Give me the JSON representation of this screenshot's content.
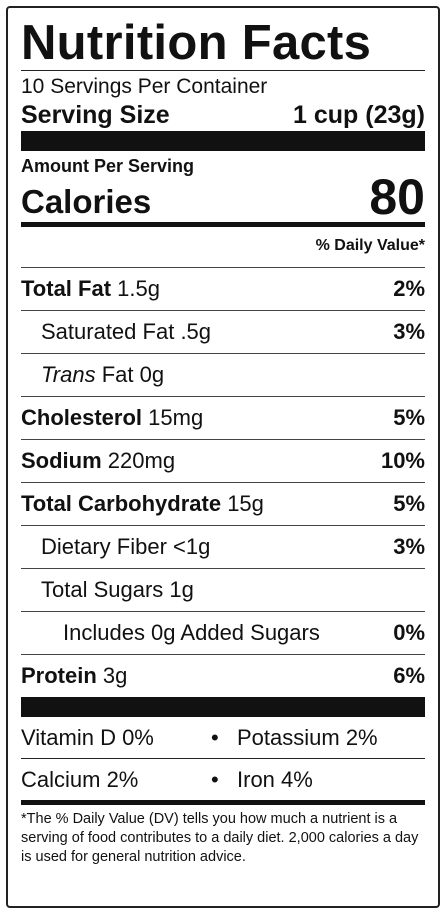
{
  "title": "Nutrition Facts",
  "servings_per_container": "10 Servings Per Container",
  "serving_size": {
    "label": "Serving Size",
    "value": "1 cup (23g)"
  },
  "amount_per_serving": "Amount Per Serving",
  "calories": {
    "label": "Calories",
    "value": "80"
  },
  "dv_header": "% Daily Value*",
  "nutrients": {
    "total_fat": {
      "label": "Total Fat",
      "amount": "1.5g",
      "dv": "2%"
    },
    "saturated_fat": {
      "label": "Saturated Fat",
      "amount": ".5g",
      "dv": "3%"
    },
    "trans_fat": {
      "label_italic": "Trans",
      "label": "Fat",
      "amount": "0g"
    },
    "cholesterol": {
      "label": "Cholesterol",
      "amount": "15mg",
      "dv": "5%"
    },
    "sodium": {
      "label": "Sodium",
      "amount": "220mg",
      "dv": "10%"
    },
    "total_carbohydrate": {
      "label": "Total Carbohydrate",
      "amount": "15g",
      "dv": "5%"
    },
    "dietary_fiber": {
      "label": "Dietary Fiber",
      "amount": "<1g",
      "dv": "3%"
    },
    "total_sugars": {
      "label": "Total Sugars",
      "amount": "1g"
    },
    "added_sugars": {
      "label": "Includes 0g Added Sugars",
      "dv": "0%"
    },
    "protein": {
      "label": "Protein",
      "amount": "3g",
      "dv": "6%"
    }
  },
  "vitamins": {
    "vitamin_d": "Vitamin D 0%",
    "potassium": "Potassium 2%",
    "calcium": "Calcium 2%",
    "iron": "Iron 4%",
    "bullet": "•"
  },
  "footnote": "*The % Daily Value (DV) tells you how much a nutrient is a serving of food contributes to a daily diet. 2,000 calories a day is used for general nutrition advice."
}
